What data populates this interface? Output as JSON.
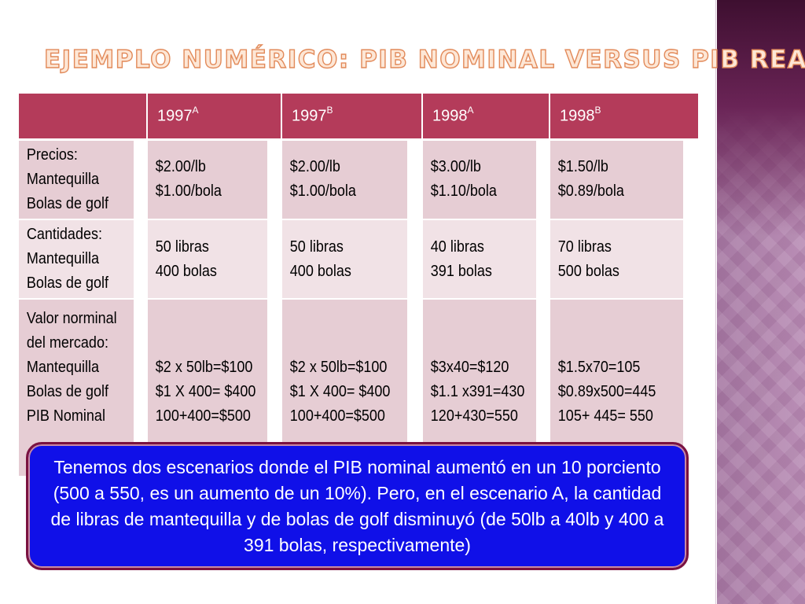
{
  "title": "Ejemplo numérico: PIB nominal versus PIB real",
  "table": {
    "headers": [
      {
        "main": "",
        "sup": ""
      },
      {
        "main": "1997",
        "sup": "A"
      },
      {
        "main": "1997",
        "sup": "B"
      },
      {
        "main": "1998",
        "sup": "A"
      },
      {
        "main": "1998",
        "sup": "B"
      }
    ],
    "rows": [
      [
        "Precios:\nMantequilla\nBolas de golf",
        "$2.00/lb\n$1.00/bola",
        "$2.00/lb\n$1.00/bola",
        "$3.00/lb\n$1.10/bola",
        "$1.50/lb\n$0.89/bola"
      ],
      [
        "Cantidades:\nMantequilla\nBolas de golf",
        "50 libras\n400 bolas",
        "50 libras\n400 bolas",
        "40 libras\n391 bolas",
        "70 libras\n500 bolas"
      ],
      [
        "Valor norminal\ndel mercado:\nMantequilla\nBolas de golf\nPIB Nominal",
        "\n\n$2 x 50lb=$100\n$1 X 400= $400\n100+400=$500",
        "\n\n$2 x 50lb=$100\n$1 X 400= $400\n100+400=$500",
        "\n\n$3x40=$120\n$1.1 x391=430\n120+430=550",
        "\n\n$1.5x70=105\n$0.89x500=445\n105+ 445= 550"
      ]
    ]
  },
  "callout": {
    "text": "Tenemos dos escenarios donde el PIB nominal aumentó en un 10 porciento (500 a 550, es un aumento de un 10%).  Pero, en el escenario A,  la cantidad de libras de mantequilla y de bolas de golf disminuyó (de 50lb a 40lb y 400 a 391 bolas, respectivamente)"
  },
  "colors": {
    "header_bg": "#b43b5a",
    "row_dark": "#e6cdd4",
    "row_light": "#f1e2e6",
    "callout_bg": "#1010e8",
    "callout_border": "#7a1240",
    "title_fill": "#fde7d6",
    "title_outline": "#e28a5a",
    "side_band_top": "#3e0f30",
    "side_band": "#b98db5"
  }
}
